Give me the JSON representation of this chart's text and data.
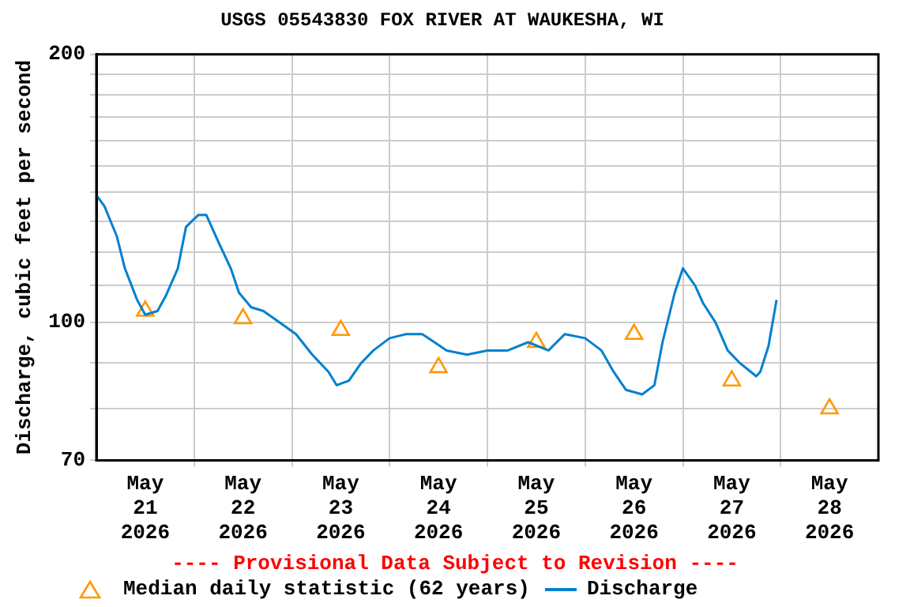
{
  "chart_data": {
    "type": "line",
    "title": "USGS 05543830 FOX RIVER AT WAUKESHA, WI",
    "ylabel": "Discharge, cubic feet per second",
    "annotations": [
      "---- Provisional Data Subject to Revision ----"
    ],
    "log": "y",
    "grid": true,
    "legend": "bottom",
    "xlim": [
      "2026-05-21T00:00",
      "2026-05-29T00:00"
    ],
    "xticks": [
      {
        "value": "2026-05-21T12:00",
        "label": "May\n21\n2026"
      },
      {
        "value": "2026-05-22T00:00",
        "label": null
      },
      {
        "value": "2026-05-22T12:00",
        "label": "May\n22\n2026"
      },
      {
        "value": "2026-05-23T00:00",
        "label": null
      },
      {
        "value": "2026-05-23T12:00",
        "label": "May\n23\n2026"
      },
      {
        "value": "2026-05-24T00:00",
        "label": null
      },
      {
        "value": "2026-05-24T12:00",
        "label": "May\n24\n2026"
      },
      {
        "value": "2026-05-25T00:00",
        "label": null
      },
      {
        "value": "2026-05-25T12:00",
        "label": "May\n25\n2026"
      },
      {
        "value": "2026-05-26T00:00",
        "label": null
      },
      {
        "value": "2026-05-26T12:00",
        "label": "May\n26\n2026"
      },
      {
        "value": "2026-05-27T00:00",
        "label": null
      },
      {
        "value": "2026-05-27T12:00",
        "label": "May\n27\n2026"
      },
      {
        "value": "2026-05-28T00:00",
        "label": null
      },
      {
        "value": "2026-05-28T12:00",
        "label": "May\n28\n2026"
      }
    ],
    "ylim": [
      70,
      200
    ],
    "yticks": [
      70,
      {
        "value": 80,
        "label": null
      },
      {
        "value": 90,
        "label": null
      },
      100,
      {
        "value": 110,
        "label": null
      },
      {
        "value": 120,
        "label": null
      },
      {
        "value": 130,
        "label": null
      },
      {
        "value": 140,
        "label": null
      },
      {
        "value": 150,
        "label": null
      },
      {
        "value": 160,
        "label": null
      },
      {
        "value": 170,
        "label": null
      },
      {
        "value": 180,
        "label": null
      },
      {
        "value": 190,
        "label": null
      },
      200
    ],
    "series": [
      {
        "name": "Median daily statistic (62 years)",
        "type": "scatter",
        "marker": "triangle",
        "color": "#ff9900",
        "x": [
          "2026-05-21T12:00",
          "2026-05-22T12:00",
          "2026-05-23T12:00",
          "2026-05-24T12:00",
          "2026-05-25T12:00",
          "2026-05-26T12:00",
          "2026-05-27T12:00",
          "2026-05-28T12:00"
        ],
        "values": [
          103,
          101,
          98,
          89,
          95,
          97,
          86,
          80
        ]
      },
      {
        "name": "Discharge",
        "color": "#0080d0",
        "x": [
          "2026-05-21T00:00",
          "2026-05-21T02:00",
          "2026-05-21T05:00",
          "2026-05-21T07:00",
          "2026-05-21T10:00",
          "2026-05-21T12:00",
          "2026-05-21T15:00",
          "2026-05-21T17:00",
          "2026-05-21T20:00",
          "2026-05-21T22:00",
          "2026-05-22T01:00",
          "2026-05-22T03:00",
          "2026-05-22T06:00",
          "2026-05-22T09:00",
          "2026-05-22T11:00",
          "2026-05-22T14:00",
          "2026-05-22T17:00",
          "2026-05-22T21:00",
          "2026-05-23T01:00",
          "2026-05-23T05:00",
          "2026-05-23T09:00",
          "2026-05-23T11:00",
          "2026-05-23T14:00",
          "2026-05-23T17:00",
          "2026-05-23T20:00",
          "2026-05-24T00:00",
          "2026-05-24T04:00",
          "2026-05-24T08:00",
          "2026-05-24T11:00",
          "2026-05-24T14:00",
          "2026-05-24T19:00",
          "2026-05-25T00:00",
          "2026-05-25T05:00",
          "2026-05-25T10:00",
          "2026-05-25T15:00",
          "2026-05-25T19:00",
          "2026-05-26T00:00",
          "2026-05-26T04:00",
          "2026-05-26T07:00",
          "2026-05-26T10:00",
          "2026-05-26T14:00",
          "2026-05-26T17:00",
          "2026-05-26T19:00",
          "2026-05-26T22:00",
          "2026-05-27T00:00",
          "2026-05-27T03:00",
          "2026-05-27T05:00",
          "2026-05-27T08:00",
          "2026-05-27T11:00",
          "2026-05-27T14:00",
          "2026-05-27T18:00",
          "2026-05-27T19:00",
          "2026-05-27T21:00",
          "2026-05-27T23:00"
        ],
        "values": [
          139,
          135,
          125,
          115,
          106,
          102,
          103,
          107,
          115,
          128,
          132,
          132,
          123,
          115,
          108,
          104,
          103,
          100,
          97,
          92,
          88,
          85,
          86,
          90,
          93,
          96,
          97,
          97,
          95,
          93,
          92,
          93,
          93,
          95,
          93,
          97,
          96,
          93,
          88,
          84,
          83,
          85,
          95,
          108,
          115,
          110,
          105,
          100,
          93,
          90,
          87,
          88,
          94,
          106
        ]
      }
    ]
  }
}
